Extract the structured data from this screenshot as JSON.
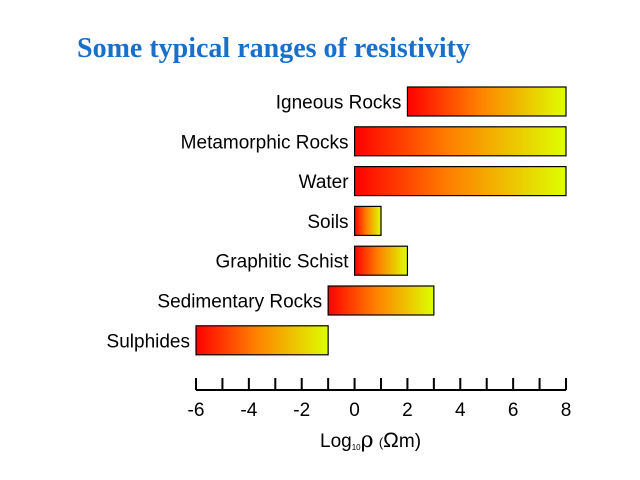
{
  "chart_data": {
    "type": "bar",
    "orientation": "horizontal",
    "title": "Some typical ranges of resistivity",
    "xlabel": {
      "log": "Log",
      "base": "10",
      "rho": "ρ",
      "open_paren": "(",
      "unit": "Ω",
      "m_close": "m)"
    },
    "xlim": [
      -6,
      8
    ],
    "xticks": [
      -6,
      -4,
      -2,
      0,
      2,
      4,
      6,
      8
    ],
    "minor_tick_step": 1,
    "categories": [
      "Igneous Rocks",
      "Metamorphic Rocks",
      "Water",
      "Soils",
      "Graphitic Schist",
      "Sedimentary Rocks",
      "Sulphides"
    ],
    "ranges": [
      [
        2,
        8
      ],
      [
        0,
        8
      ],
      [
        0,
        8
      ],
      [
        0,
        1
      ],
      [
        0,
        2
      ],
      [
        -1,
        3
      ],
      [
        -6,
        -1
      ]
    ],
    "colors": {
      "title": "#1a6fc9",
      "bar_gradient_start": "#ff0000",
      "bar_gradient_mid": "#ff8000",
      "bar_gradient_end": "#ddff00",
      "bar_outline": "#000000",
      "axis": "#000000"
    },
    "grid": false,
    "legend": "none"
  }
}
